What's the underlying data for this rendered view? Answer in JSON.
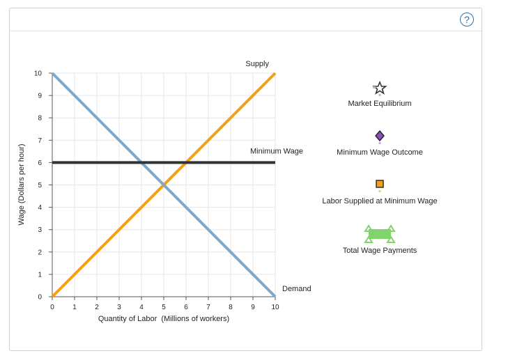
{
  "help": {
    "label": "?"
  },
  "chart_data": {
    "type": "line",
    "xlabel": "Quantity of Labor  (Millions of workers)",
    "ylabel": "Wage (Dollars per hour)",
    "xlim": [
      0,
      10
    ],
    "ylim": [
      0,
      10
    ],
    "xticks": [
      0,
      1,
      2,
      3,
      4,
      5,
      6,
      7,
      8,
      9,
      10
    ],
    "yticks": [
      0,
      1,
      2,
      3,
      4,
      5,
      6,
      7,
      8,
      9,
      10
    ],
    "grid": true,
    "series": [
      {
        "name": "Supply",
        "color": "#f5a014",
        "points": [
          [
            0,
            0
          ],
          [
            10,
            10
          ]
        ]
      },
      {
        "name": "Demand",
        "color": "#7ea7c9",
        "points": [
          [
            0,
            10
          ],
          [
            10,
            0
          ]
        ]
      },
      {
        "name": "Minimum Wage",
        "color": "#333333",
        "points": [
          [
            0,
            6
          ],
          [
            10,
            6
          ]
        ]
      }
    ]
  },
  "legend": [
    {
      "label": "Market Equilibrium",
      "icon": "star-icon",
      "color": "#333333"
    },
    {
      "label": "Minimum Wage Outcome",
      "icon": "diamond-icon",
      "color": "#8b4fb8"
    },
    {
      "label": "Labor Supplied at Minimum Wage",
      "icon": "square-icon",
      "color": "#f5a014"
    },
    {
      "label": "Total Wage Payments",
      "icon": "area-icon",
      "color": "#7fd46b"
    }
  ]
}
